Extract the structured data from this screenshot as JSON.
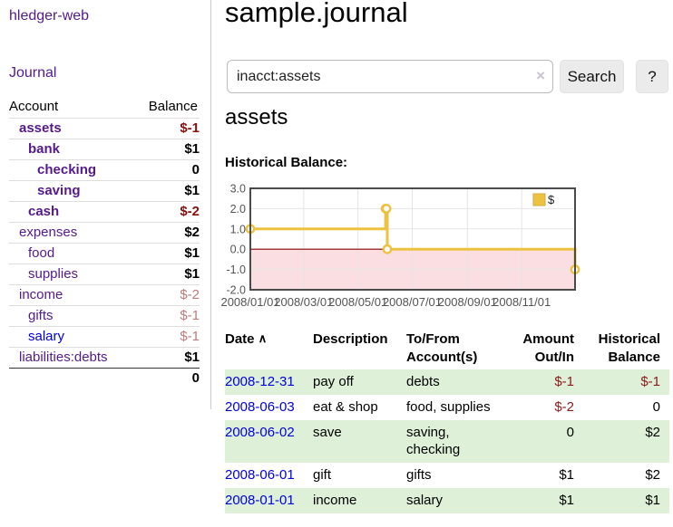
{
  "sidebar": {
    "brand": "hledger-web",
    "journal_link": "Journal",
    "accounts_table": {
      "col_account": "Account",
      "col_balance": "Balance",
      "rows": [
        {
          "name": "assets",
          "indent": 1,
          "bold": true,
          "balance": "$-1",
          "balance_class": "neg-strong"
        },
        {
          "name": "bank",
          "indent": 2,
          "bold": true,
          "balance": "$1",
          "balance_class": "pos"
        },
        {
          "name": "checking",
          "indent": 3,
          "bold": true,
          "balance": "0",
          "balance_class": "pos"
        },
        {
          "name": "saving",
          "indent": 3,
          "bold": true,
          "balance": "$1",
          "balance_class": "pos"
        },
        {
          "name": "cash",
          "indent": 2,
          "bold": true,
          "balance": "$-2",
          "balance_class": "neg-strong"
        },
        {
          "name": "expenses",
          "indent": 1,
          "bold": false,
          "balance": "$2",
          "balance_class": "pos"
        },
        {
          "name": "food",
          "indent": 2,
          "bold": false,
          "balance": "$1",
          "balance_class": "pos"
        },
        {
          "name": "supplies",
          "indent": 2,
          "bold": false,
          "balance": "$1",
          "balance_class": "pos"
        },
        {
          "name": "income",
          "indent": 1,
          "bold": false,
          "balance": "$-2",
          "balance_class": "neg-soft"
        },
        {
          "name": "gifts",
          "indent": 2,
          "bold": false,
          "balance": "$-1",
          "balance_class": "neg-soft"
        },
        {
          "name": "salary",
          "indent": 2,
          "bold": false,
          "balance": "$-1",
          "balance_class": "neg-soft",
          "link_state": "unvisited"
        },
        {
          "name": "liabilities:debts",
          "indent": 1,
          "bold": false,
          "balance": "$1",
          "balance_class": "pos"
        }
      ],
      "total": "0"
    }
  },
  "header": {
    "title": "sample.journal"
  },
  "search": {
    "query": "inacct:assets",
    "clear_icon": "×",
    "button_label": "Search",
    "help_label": "?"
  },
  "account_page": {
    "heading": "assets",
    "chart_title": "Historical Balance:"
  },
  "chart_data": {
    "type": "line",
    "step": true,
    "series": [
      {
        "name": "$",
        "color": "#edc240",
        "points": [
          [
            "2008-01-01",
            1
          ],
          [
            "2008-06-01",
            2
          ],
          [
            "2008-06-02",
            2
          ],
          [
            "2008-06-03",
            0
          ],
          [
            "2008-12-31",
            -1
          ]
        ]
      }
    ],
    "x_range": [
      "2008-01-01",
      "2008-12-31"
    ],
    "ylim": [
      -2,
      3
    ],
    "y_ticks": [
      {
        "v": 3,
        "label": "3.0"
      },
      {
        "v": 2,
        "label": "2.0"
      },
      {
        "v": 1,
        "label": "1.0"
      },
      {
        "v": 0,
        "label": "0.0"
      },
      {
        "v": -1,
        "label": "-1.0"
      },
      {
        "v": -2,
        "label": "-2.0"
      }
    ],
    "x_ticks": [
      {
        "date": "2008-01-01",
        "label": "2008/01/01"
      },
      {
        "date": "2008-03-01",
        "label": "2008/03/01"
      },
      {
        "date": "2008-05-01",
        "label": "2008/05/01"
      },
      {
        "date": "2008-07-01",
        "label": "2008/07/01"
      },
      {
        "date": "2008-09-01",
        "label": "2008/09/01"
      },
      {
        "date": "2008-11-01",
        "label": "2008/11/01"
      }
    ],
    "legend": {
      "position": "top-right",
      "label": "$"
    },
    "grid": true,
    "zero_line_color": "#8b0000",
    "negative_region_color": "#fbdee1",
    "grid_color": "#e5e5e5",
    "border_color": "#4a4a4a",
    "axis_text_color": "#545454"
  },
  "register_table": {
    "header": {
      "date": "Date",
      "sort_icon": "∧",
      "description": "Description",
      "tofrom": "To/From Account(s)",
      "amount": "Amount Out/In",
      "balance": "Historical Balance"
    },
    "rows": [
      {
        "date": "2008-12-31",
        "description": "pay off",
        "accounts": "debts",
        "amount": "$-1",
        "amount_neg": true,
        "balance": "$-1",
        "balance_neg": true,
        "shaded": true
      },
      {
        "date": "2008-06-03",
        "description": "eat & shop",
        "accounts": "food, supplies",
        "amount": "$-2",
        "amount_neg": true,
        "balance": "0",
        "balance_neg": false,
        "shaded": false
      },
      {
        "date": "2008-06-02",
        "description": "save",
        "accounts": "saving, checking",
        "amount": "0",
        "amount_neg": false,
        "balance": "$2",
        "balance_neg": false,
        "shaded": true
      },
      {
        "date": "2008-06-01",
        "description": "gift",
        "accounts": "gifts",
        "amount": "$1",
        "amount_neg": false,
        "balance": "$2",
        "balance_neg": false,
        "shaded": false
      },
      {
        "date": "2008-01-01",
        "description": "income",
        "accounts": "salary",
        "amount": "$1",
        "amount_neg": false,
        "balance": "$1",
        "balance_neg": false,
        "shaded": true
      }
    ]
  },
  "colors": {
    "link_visited": "#551a8b",
    "link_unvisited": "#0000e0",
    "negative_strong": "#8b0f0f",
    "negative_soft": "#bb7b7b",
    "row_shade_green": "#dff0d8",
    "series_gold": "#edc240"
  }
}
